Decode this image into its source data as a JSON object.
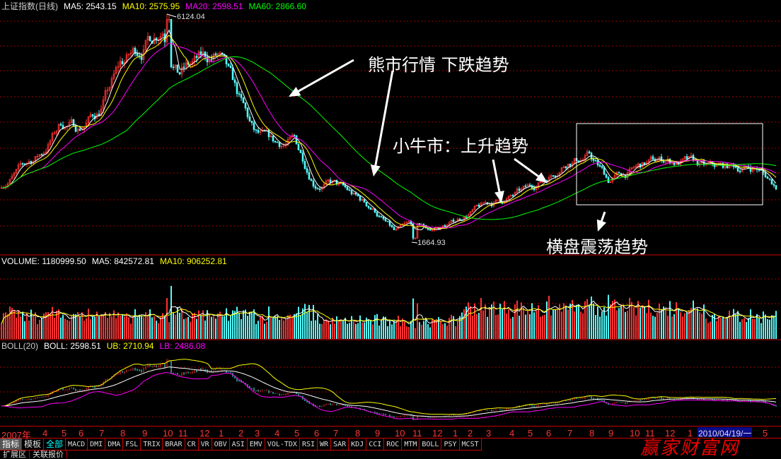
{
  "header": {
    "title": "上证指数(日线)",
    "ma5": "MA5: 2543.15",
    "ma10": "MA10: 2575.95",
    "ma20": "MA20: 2598.51",
    "ma60": "MA60: 2866.60"
  },
  "volume_header": {
    "title": "VOLUME: 1180999.50",
    "ma5": "MA5: 842572.81",
    "ma10": "MA10: 906252.81"
  },
  "boll_header": {
    "title": "BOLL(20)",
    "boll": "BOLL: 2598.51",
    "ub": "UB: 2710.94",
    "lb": "LB: 2486.08"
  },
  "annotations": {
    "bear": "熊市行情 下跌趋势",
    "bull": "小牛市：上升趋势",
    "sideways": "横盘震荡趋势",
    "high": "6124.04",
    "low": "1664.93"
  },
  "date_axis": {
    "labels": [
      "2007年",
      "4",
      "5",
      "6",
      "7",
      "8",
      "9",
      "10",
      "11",
      "12",
      "1",
      "2",
      "3",
      "4",
      "5",
      "6",
      "7",
      "8",
      "9",
      "10",
      "11",
      "12",
      "1",
      "2",
      "3",
      "4",
      "5",
      "6",
      "7",
      "8",
      "9",
      "10",
      "11",
      "12",
      "1",
      "5"
    ],
    "cursor_date": "2010/04/19/一"
  },
  "tabs": [
    "指标",
    "模板",
    "全部",
    "MACD",
    "DMI",
    "DMA",
    "FSL",
    "TRIX",
    "BRAR",
    "CR",
    "VR",
    "OBV",
    "ASI",
    "EMV",
    "VOL-TDX",
    "RSI",
    "WR",
    "SAR",
    "KDJ",
    "CCI",
    "ROC",
    "MTM",
    "BOLL",
    "PSY",
    "MCST"
  ],
  "bottom_tabs": [
    "扩展区",
    "关联报价"
  ],
  "watermark": "赢家财富网",
  "colors": {
    "up": "#ff3232",
    "down": "#54fcfc",
    "ma5": "#ffffff",
    "ma10": "#ffff00",
    "ma20": "#ff00ff",
    "ma60": "#00ff00",
    "grid": "#a00000"
  },
  "chart_data": {
    "type": "candlestick",
    "title": "上证指数(日线)",
    "months": [
      "2007-03",
      "2007-04",
      "2007-05",
      "2007-06",
      "2007-07",
      "2007-08",
      "2007-09",
      "2007-10",
      "2007-11",
      "2007-12",
      "2008-01",
      "2008-02",
      "2008-03",
      "2008-04",
      "2008-05",
      "2008-06",
      "2008-07",
      "2008-08",
      "2008-09",
      "2008-10",
      "2008-11",
      "2008-12",
      "2009-01",
      "2009-02",
      "2009-03",
      "2009-04",
      "2009-05",
      "2009-06",
      "2009-07",
      "2009-08",
      "2009-09",
      "2009-10",
      "2009-11",
      "2009-12",
      "2010-01",
      "2010-02",
      "2010-03",
      "2010-04",
      "2010-05"
    ],
    "approx_close": [
      2750,
      3400,
      4000,
      3900,
      4250,
      5100,
      5500,
      6000,
      5100,
      5200,
      5300,
      4400,
      3700,
      3500,
      3600,
      2850,
      2800,
      2500,
      2250,
      1800,
      1950,
      1850,
      2000,
      2200,
      2350,
      2500,
      2650,
      2900,
      3300,
      3350,
      2850,
      3000,
      3150,
      3250,
      3200,
      3050,
      3100,
      3100,
      2650
    ],
    "extremes": {
      "high": 6124.04,
      "low": 1664.93
    },
    "ylim": [
      1383,
      6433
    ],
    "indicators": [
      "MA5",
      "MA10",
      "MA20",
      "MA60",
      "VOLUME",
      "BOLL(20)"
    ]
  }
}
